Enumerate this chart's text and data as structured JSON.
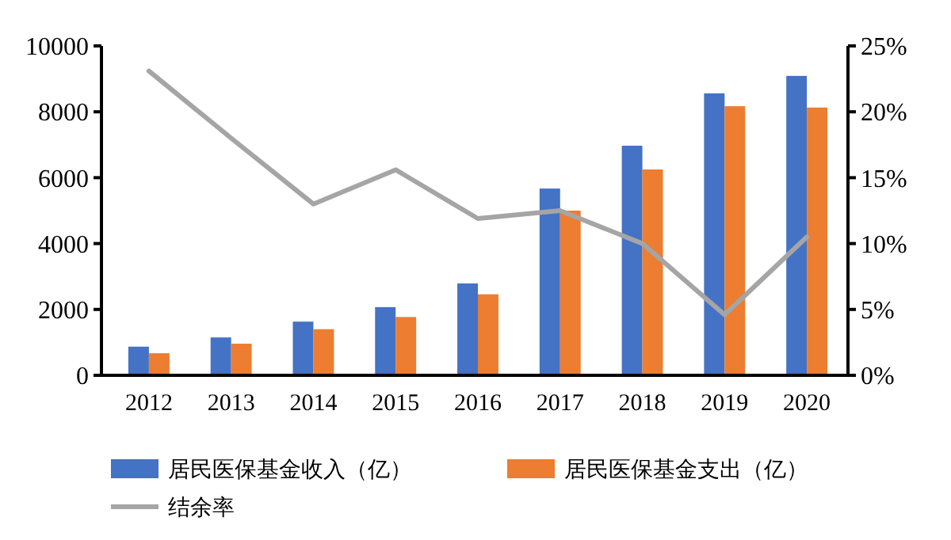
{
  "chart_data": {
    "type": "bar",
    "categories": [
      "2012",
      "2013",
      "2014",
      "2015",
      "2016",
      "2017",
      "2018",
      "2019",
      "2020"
    ],
    "series": [
      {
        "name": "居民医保基金收入（亿）",
        "color": "#4472c4",
        "values": [
          870,
          1150,
          1630,
          2070,
          2790,
          5670,
          6970,
          8560,
          9090
        ]
      },
      {
        "name": "居民医保基金支出（亿）",
        "color": "#ed7d31",
        "values": [
          670,
          960,
          1400,
          1770,
          2460,
          5000,
          6250,
          8170,
          8130
        ]
      },
      {
        "name": "结余率",
        "type": "line",
        "axis": "y2",
        "color": "#a5a5a5",
        "values": [
          23.1,
          18,
          13,
          15.6,
          11.9,
          12.5,
          10,
          4.6,
          10.5
        ]
      }
    ],
    "ylim": [
      0,
      10000
    ],
    "yticks": [
      0,
      2000,
      4000,
      6000,
      8000,
      10000
    ],
    "y2lim": [
      0,
      25
    ],
    "y2ticks": [
      {
        "value": 0,
        "label": "0%"
      },
      {
        "value": 5,
        "label": "5%"
      },
      {
        "value": 10,
        "label": "10%"
      },
      {
        "value": 15,
        "label": "15%"
      },
      {
        "value": 20,
        "label": "20%"
      },
      {
        "value": 25,
        "label": "25%"
      }
    ],
    "legend": "bottom",
    "grid": false,
    "marker": "none"
  }
}
